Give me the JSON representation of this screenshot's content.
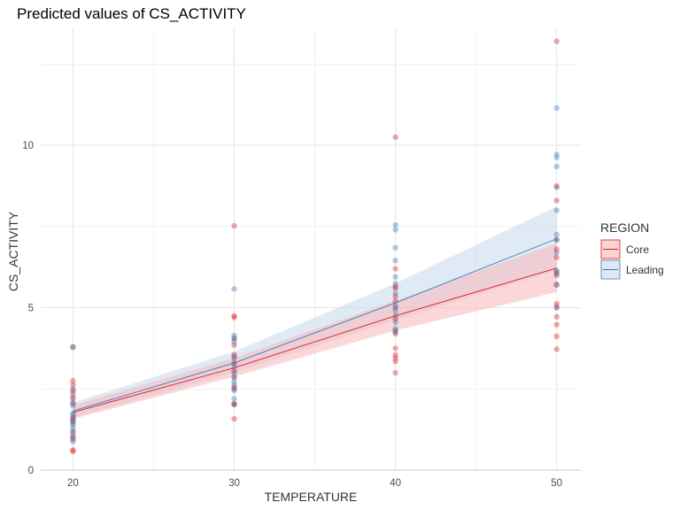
{
  "chart_data": {
    "type": "scatter",
    "title": "Predicted values of CS_ACTIVITY",
    "xlabel": "TEMPERATURE",
    "ylabel": "CS_ACTIVITY",
    "xlim": [
      18,
      51.5
    ],
    "ylim": [
      0,
      13.6
    ],
    "x_ticks": [
      20,
      30,
      40,
      50
    ],
    "y_ticks": [
      0,
      5,
      10
    ],
    "x_minor": [
      25,
      35,
      45
    ],
    "y_minor": [
      2.5,
      7.5,
      12.5
    ],
    "grid": true,
    "legend": {
      "title": "REGION",
      "position": "right"
    },
    "series": [
      {
        "name": "Core",
        "color": "#e41a1c",
        "fill": "#f7b7b9",
        "line": [
          [
            20,
            1.78
          ],
          [
            30,
            3.15
          ],
          [
            40,
            4.75
          ],
          [
            50,
            6.22
          ]
        ],
        "ci_low": [
          [
            20,
            1.58
          ],
          [
            30,
            2.88
          ],
          [
            40,
            4.3
          ],
          [
            50,
            5.48
          ]
        ],
        "ci_high": [
          [
            20,
            2.0
          ],
          [
            30,
            3.45
          ],
          [
            40,
            5.22
          ],
          [
            50,
            6.98
          ]
        ],
        "points": [
          [
            20,
            0.58
          ],
          [
            20,
            0.62
          ],
          [
            20,
            0.95
          ],
          [
            20,
            1.05
          ],
          [
            20,
            1.2
          ],
          [
            20,
            1.5
          ],
          [
            20,
            1.55
          ],
          [
            20,
            1.62
          ],
          [
            20,
            2.05
          ],
          [
            20,
            2.2
          ],
          [
            20,
            2.35
          ],
          [
            20,
            2.45
          ],
          [
            20,
            2.62
          ],
          [
            20,
            2.75
          ],
          [
            20,
            3.78
          ],
          [
            30,
            1.58
          ],
          [
            30,
            2.02
          ],
          [
            30,
            2.05
          ],
          [
            30,
            2.5
          ],
          [
            30,
            2.55
          ],
          [
            30,
            2.85
          ],
          [
            30,
            3.05
          ],
          [
            30,
            3.3
          ],
          [
            30,
            3.45
          ],
          [
            30,
            3.55
          ],
          [
            30,
            3.85
          ],
          [
            30,
            4.05
          ],
          [
            30,
            4.7
          ],
          [
            30,
            4.75
          ],
          [
            30,
            7.52
          ],
          [
            40,
            3.0
          ],
          [
            40,
            3.35
          ],
          [
            40,
            3.45
          ],
          [
            40,
            3.55
          ],
          [
            40,
            3.75
          ],
          [
            40,
            4.2
          ],
          [
            40,
            4.3
          ],
          [
            40,
            4.65
          ],
          [
            40,
            5.0
          ],
          [
            40,
            5.2
          ],
          [
            40,
            5.35
          ],
          [
            40,
            5.6
          ],
          [
            40,
            5.65
          ],
          [
            40,
            6.2
          ],
          [
            40,
            10.25
          ],
          [
            50,
            3.72
          ],
          [
            50,
            4.12
          ],
          [
            50,
            4.48
          ],
          [
            50,
            4.72
          ],
          [
            50,
            5.02
          ],
          [
            50,
            5.12
          ],
          [
            50,
            5.7
          ],
          [
            50,
            6.0
          ],
          [
            50,
            6.1
          ],
          [
            50,
            6.55
          ],
          [
            50,
            6.8
          ],
          [
            50,
            7.1
          ],
          [
            50,
            8.3
          ],
          [
            50,
            8.75
          ],
          [
            50,
            13.2
          ]
        ]
      },
      {
        "name": "Leading",
        "color": "#377eb8",
        "fill": "#c6d9ec",
        "line": [
          [
            20,
            1.82
          ],
          [
            30,
            3.3
          ],
          [
            40,
            5.15
          ],
          [
            50,
            7.12
          ]
        ],
        "ci_low": [
          [
            20,
            1.62
          ],
          [
            30,
            3.0
          ],
          [
            40,
            4.62
          ],
          [
            50,
            6.15
          ]
        ],
        "ci_high": [
          [
            20,
            2.08
          ],
          [
            30,
            3.65
          ],
          [
            40,
            5.75
          ],
          [
            50,
            8.12
          ]
        ],
        "points": [
          [
            20,
            0.88
          ],
          [
            20,
            1.0
          ],
          [
            20,
            1.15
          ],
          [
            20,
            1.3
          ],
          [
            20,
            1.4
          ],
          [
            20,
            1.45
          ],
          [
            20,
            1.6
          ],
          [
            20,
            1.7
          ],
          [
            20,
            1.75
          ],
          [
            20,
            1.98
          ],
          [
            20,
            2.08
          ],
          [
            20,
            2.25
          ],
          [
            20,
            2.5
          ],
          [
            20,
            3.8
          ],
          [
            30,
            2.02
          ],
          [
            30,
            2.2
          ],
          [
            30,
            2.45
          ],
          [
            30,
            2.62
          ],
          [
            30,
            2.72
          ],
          [
            30,
            2.88
          ],
          [
            30,
            3.0
          ],
          [
            30,
            3.18
          ],
          [
            30,
            3.28
          ],
          [
            30,
            3.5
          ],
          [
            30,
            3.95
          ],
          [
            30,
            4.05
          ],
          [
            30,
            4.15
          ],
          [
            30,
            5.58
          ],
          [
            40,
            4.25
          ],
          [
            40,
            4.35
          ],
          [
            40,
            4.55
          ],
          [
            40,
            4.75
          ],
          [
            40,
            4.9
          ],
          [
            40,
            5.05
          ],
          [
            40,
            5.45
          ],
          [
            40,
            5.75
          ],
          [
            40,
            5.95
          ],
          [
            40,
            6.45
          ],
          [
            40,
            6.85
          ],
          [
            40,
            7.4
          ],
          [
            40,
            7.55
          ],
          [
            50,
            5.0
          ],
          [
            50,
            5.72
          ],
          [
            50,
            6.05
          ],
          [
            50,
            6.15
          ],
          [
            50,
            6.7
          ],
          [
            50,
            7.08
          ],
          [
            50,
            7.25
          ],
          [
            50,
            8.0
          ],
          [
            50,
            8.7
          ],
          [
            50,
            9.35
          ],
          [
            50,
            9.62
          ],
          [
            50,
            9.72
          ],
          [
            50,
            11.15
          ]
        ]
      }
    ]
  }
}
